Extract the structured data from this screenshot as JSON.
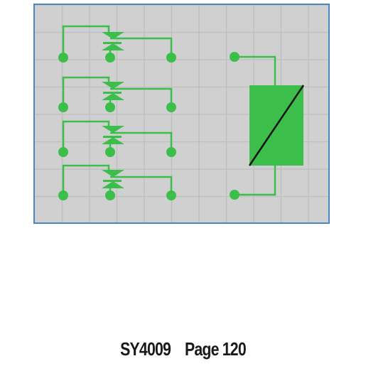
{
  "diagram": {
    "grid_color": "#bfbfbf",
    "panel_fill": "#d0d0d0",
    "border_color": "#4a86c4",
    "symbol_color": "#3bbf4a",
    "coil_line_color": "#111111",
    "contact_count": 4,
    "symbol": "relay-with-four-changeover-contacts"
  },
  "caption": {
    "product_code": "SY4009",
    "page_label": "Page 120"
  }
}
